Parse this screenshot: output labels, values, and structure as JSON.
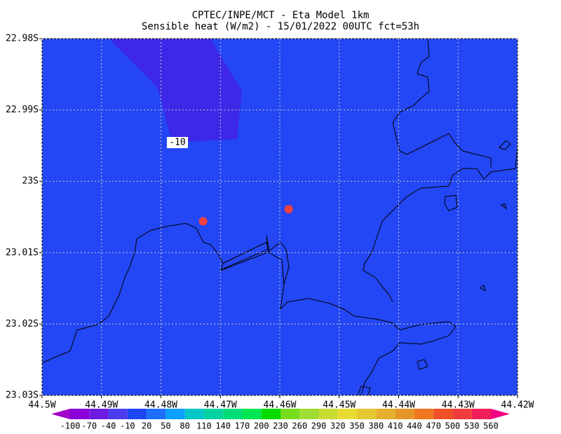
{
  "title": "CPTEC/INPE/MCT -  Eta Model 1km",
  "subtitle": "Sensible heat (W/m2) - 15/01/2022 00UTC fct=53h",
  "map": {
    "xlim": [
      -44.5,
      -44.42
    ],
    "ylim": [
      -23.03,
      -22.98
    ],
    "xticks": [
      {
        "value": -44.5,
        "label": "44.5W"
      },
      {
        "value": -44.49,
        "label": "44.49W"
      },
      {
        "value": -44.48,
        "label": "44.48W"
      },
      {
        "value": -44.47,
        "label": "44.47W"
      },
      {
        "value": -44.46,
        "label": "44.46W"
      },
      {
        "value": -44.45,
        "label": "44.45W"
      },
      {
        "value": -44.44,
        "label": "44.44W"
      },
      {
        "value": -44.43,
        "label": "44.43W"
      },
      {
        "value": -44.42,
        "label": "44.42W"
      }
    ],
    "yticks": [
      {
        "value": -22.98,
        "label": "22.98S"
      },
      {
        "value": -22.99,
        "label": "22.99S"
      },
      {
        "value": -23.0,
        "label": "23S"
      },
      {
        "value": -23.01,
        "label": "23.01S"
      },
      {
        "value": -23.02,
        "label": "23.02S"
      },
      {
        "value": -23.03,
        "label": "23.03S"
      }
    ],
    "grid": true,
    "contour_label": "-10",
    "markers": [
      {
        "lon": -44.4729,
        "lat": -23.0056,
        "color": "#f04040"
      },
      {
        "lon": -44.4585,
        "lat": -23.0039,
        "color": "#f04040"
      }
    ]
  },
  "colorbar": {
    "levels": [
      -100,
      -70,
      -40,
      -10,
      20,
      50,
      80,
      110,
      140,
      170,
      200,
      230,
      260,
      290,
      320,
      350,
      380,
      410,
      440,
      470,
      500,
      530,
      560
    ],
    "colors": [
      "#8a00d6",
      "#6e1be0",
      "#4b3cf0",
      "#1e46f5",
      "#1e6eff",
      "#0aa0ff",
      "#00c8c8",
      "#00d2a0",
      "#00dc78",
      "#00e650",
      "#00dc00",
      "#78dc1e",
      "#a0dc32",
      "#c8dc32",
      "#e6dc32",
      "#e6c832",
      "#e6af2d",
      "#e69628",
      "#f07820",
      "#f05028",
      "#f03c3c",
      "#f01e5a"
    ],
    "under_color": "#a000c8",
    "over_color": "#f00082"
  }
}
